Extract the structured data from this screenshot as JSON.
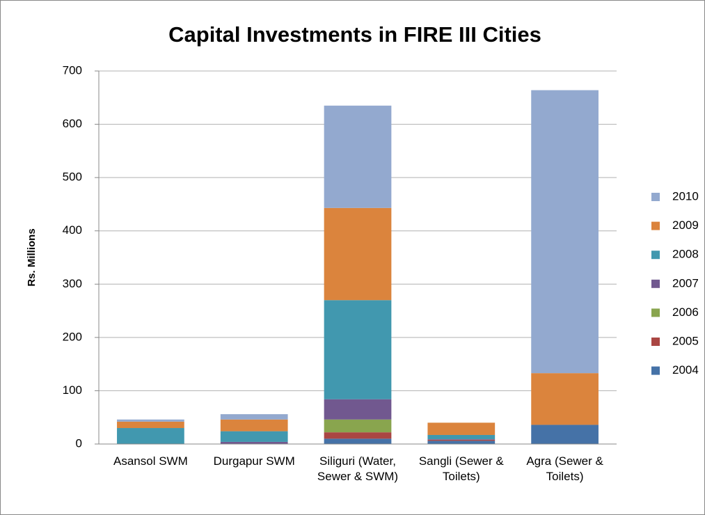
{
  "chart_data": {
    "type": "stacked_bar",
    "title": "Capital Investments in FIRE III Cities",
    "y_label": "Rs. Millions",
    "categories": [
      "Asansol SWM",
      "Durgapur SWM",
      "Siliguri (Water, Sewer & SWM)",
      "Sangli (Sewer & Toilets)",
      "Agra (Sewer & Toilets)"
    ],
    "series": [
      {
        "name": "2004",
        "color": "#4572a7",
        "values": [
          0,
          0,
          10,
          6,
          36
        ]
      },
      {
        "name": "2005",
        "color": "#aa4643",
        "values": [
          0,
          0,
          12,
          2,
          0
        ]
      },
      {
        "name": "2006",
        "color": "#89a54e",
        "values": [
          0,
          0,
          24,
          0,
          0
        ]
      },
      {
        "name": "2007",
        "color": "#71588f",
        "values": [
          0,
          4,
          38,
          1,
          0
        ]
      },
      {
        "name": "2008",
        "color": "#4198af",
        "values": [
          30,
          20,
          186,
          8,
          0
        ]
      },
      {
        "name": "2009",
        "color": "#db843d",
        "values": [
          12,
          22,
          173,
          23,
          97
        ]
      },
      {
        "name": "2010",
        "color": "#93a9cf",
        "values": [
          4,
          10,
          192,
          0,
          531
        ]
      }
    ],
    "ylim": [
      0,
      700
    ],
    "yticks": [
      0,
      100,
      200,
      300,
      400,
      500,
      600,
      700
    ],
    "grid": true,
    "legend": "right"
  }
}
